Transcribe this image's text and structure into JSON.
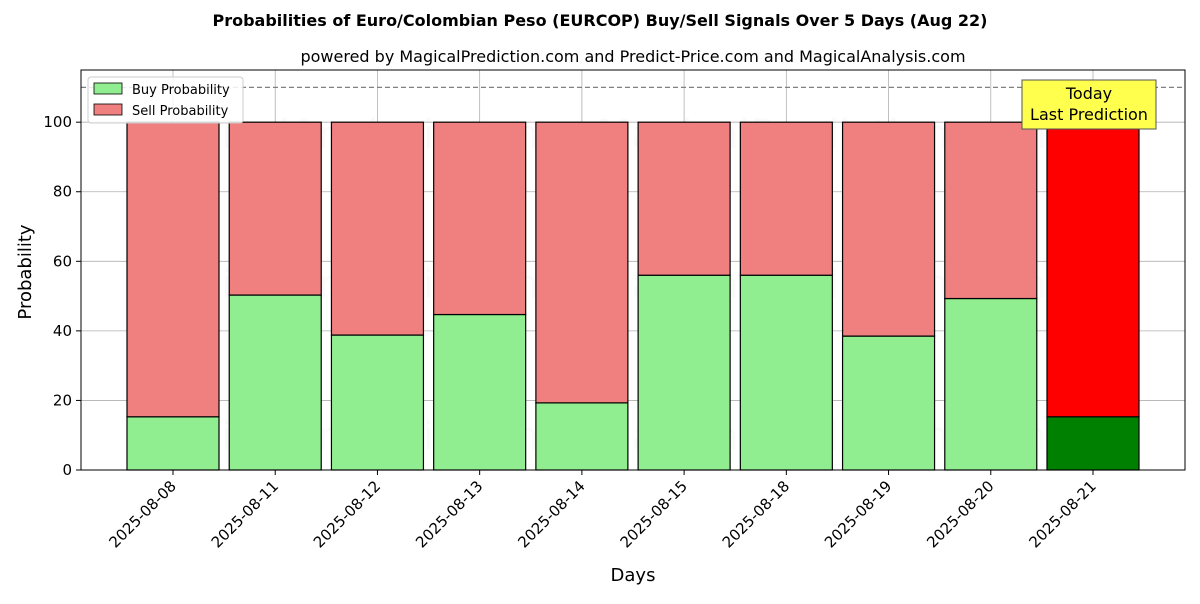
{
  "chart_data": {
    "type": "bar",
    "stacked": true,
    "title": "Probabilities of Euro/Colombian Peso (EURCOP) Buy/Sell Signals Over 5 Days (Aug 22)",
    "subtitle": "powered by MagicalPrediction.com and Predict-Price.com and MagicalAnalysis.com",
    "xlabel": "Days",
    "ylabel": "Probability",
    "ylim": [
      0,
      115
    ],
    "yticks": [
      0,
      20,
      40,
      60,
      80,
      100
    ],
    "grid": true,
    "legend_position": "top-left",
    "categories": [
      "2025-08-08",
      "2025-08-11",
      "2025-08-12",
      "2025-08-13",
      "2025-08-14",
      "2025-08-15",
      "2025-08-18",
      "2025-08-19",
      "2025-08-20",
      "2025-08-21"
    ],
    "series": [
      {
        "name": "Buy Probability",
        "color": "#90ee90",
        "values": [
          15.3,
          50.3,
          38.8,
          44.7,
          19.3,
          56.0,
          56.0,
          38.5,
          49.3,
          15.3
        ]
      },
      {
        "name": "Sell Probability",
        "color": "#f08080",
        "values": [
          84.7,
          49.7,
          61.2,
          55.3,
          80.7,
          44.0,
          44.0,
          61.5,
          50.7,
          84.7
        ]
      }
    ],
    "highlight": {
      "index": 9,
      "buy_color": "#008000",
      "sell_color": "#ff0000"
    },
    "reference_line": {
      "y": 110,
      "style": "dashed",
      "color": "#808080"
    },
    "annotation": {
      "line1": "Today",
      "line2": "Last Prediction",
      "background": "#ffff4d"
    },
    "watermarks": [
      "MagicalAnalysis.com",
      "MagicalPrediction.com"
    ]
  }
}
